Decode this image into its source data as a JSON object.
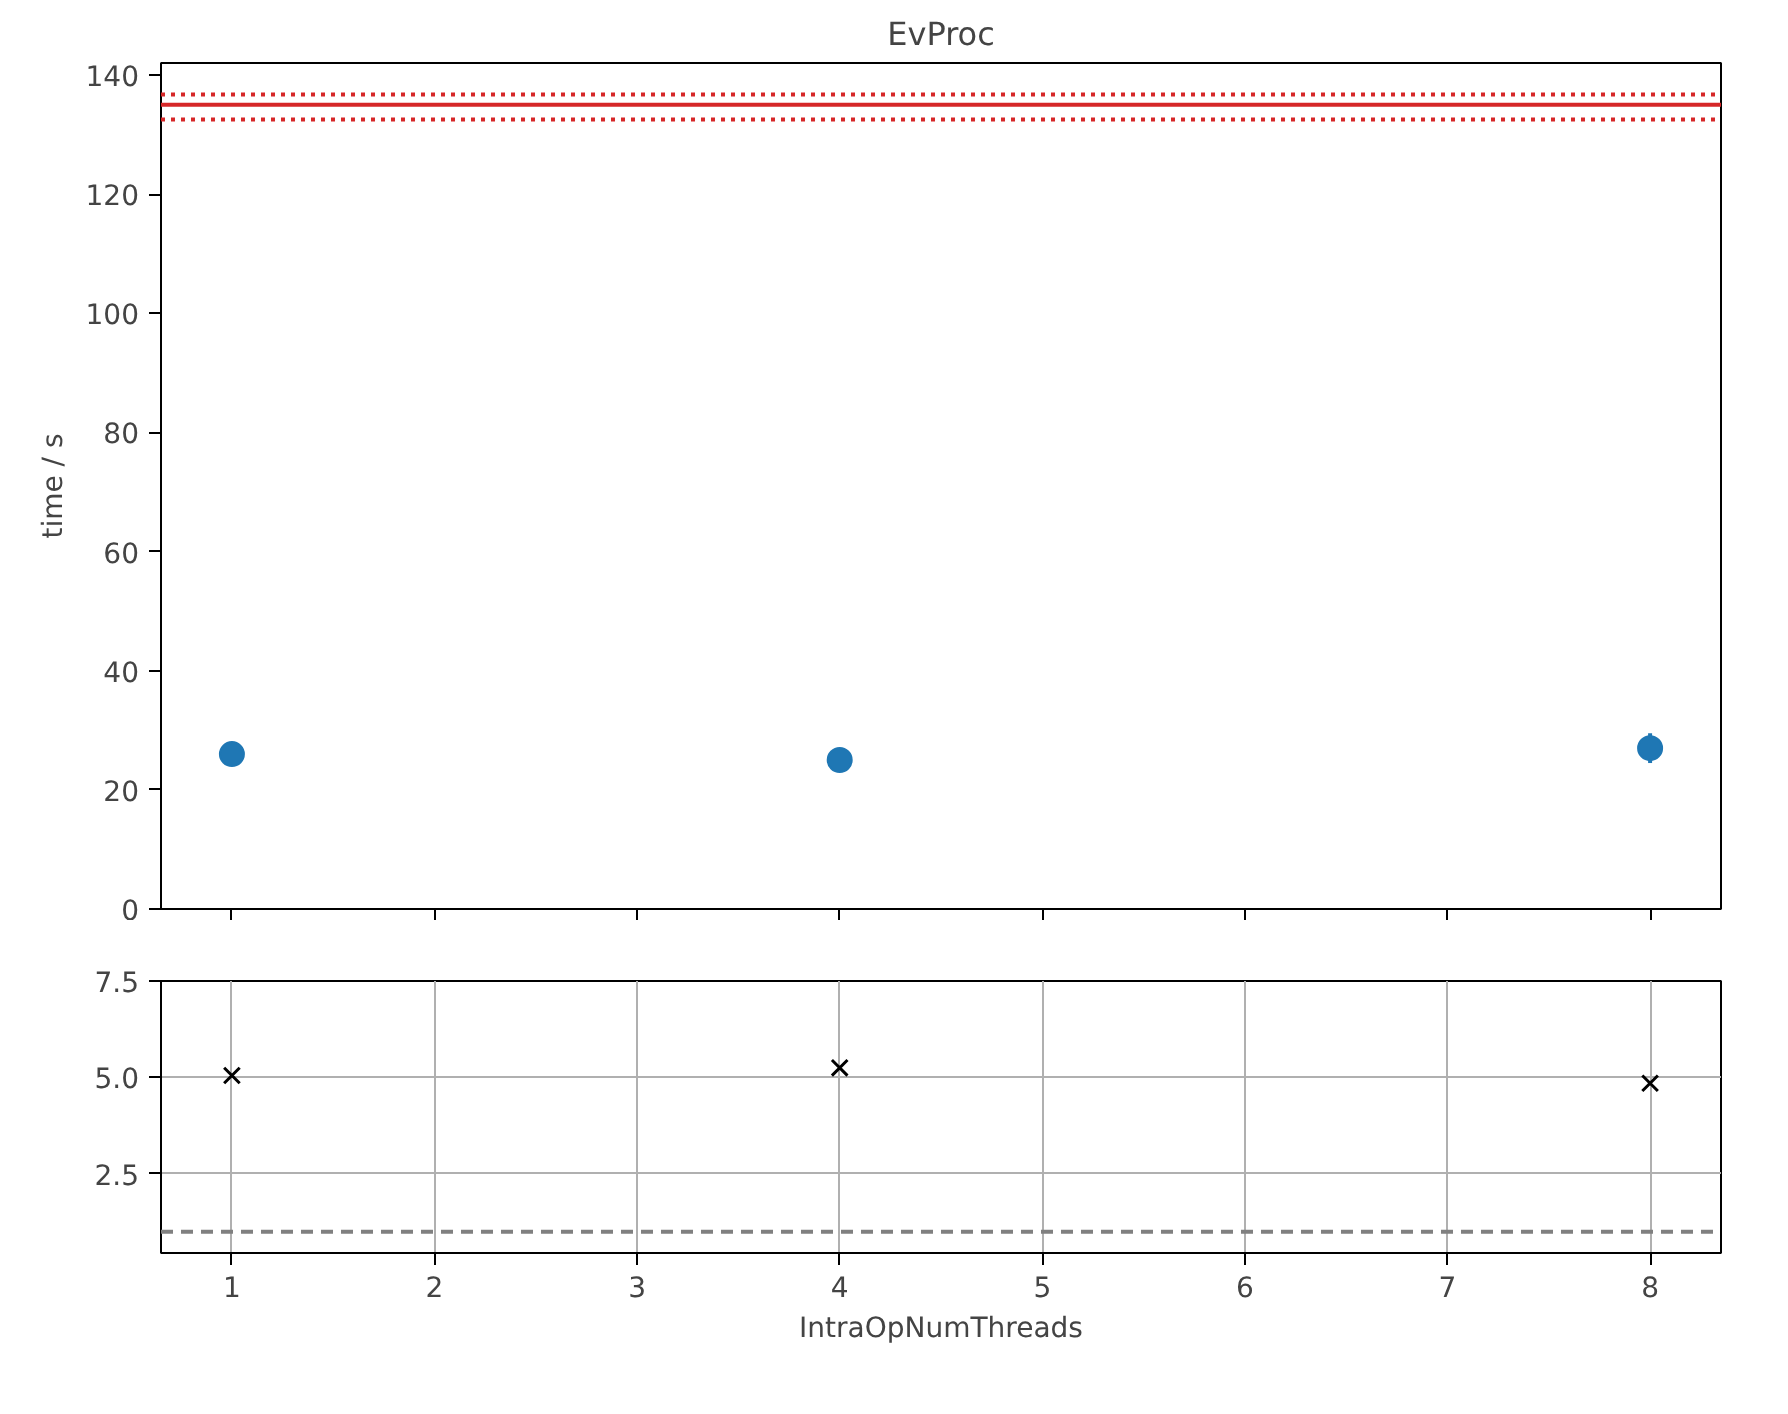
{
  "chart_data": [
    {
      "type": "scatter",
      "title": "EvProc",
      "ylabel": "time / s",
      "x": [
        1,
        4,
        8
      ],
      "xlim": [
        0.65,
        8.35
      ],
      "xticks": [
        1,
        2,
        3,
        4,
        5,
        6,
        7,
        8
      ],
      "ylim": [
        0,
        142
      ],
      "yticks": [
        0,
        20,
        40,
        60,
        80,
        100,
        120,
        140
      ],
      "tick_labels": "y",
      "grid": false,
      "marker": "circle",
      "series": [
        {
          "color": "#1f77b4",
          "values": [
            26,
            25,
            27
          ],
          "errors": [
            null,
            null,
            2.5
          ]
        }
      ],
      "ref_lines": [
        {
          "axis": "y",
          "value": 135,
          "color": "#d62728",
          "line_style": "solid"
        },
        {
          "axis": "y",
          "value": 136.7,
          "color": "#d62728",
          "line_style": "dotted"
        },
        {
          "axis": "y",
          "value": 132.5,
          "color": "#d62728",
          "line_style": "dotted"
        }
      ]
    },
    {
      "type": "scatter",
      "xlabel": "IntraOpNumThreads",
      "x": [
        1,
        4,
        8
      ],
      "xlim": [
        0.65,
        8.35
      ],
      "xticks": [
        1,
        2,
        3,
        4,
        5,
        6,
        7,
        8
      ],
      "ylim": [
        0.45,
        7.5
      ],
      "yticks": [
        {
          "value": 2.5,
          "label": "2.5"
        },
        {
          "value": 5,
          "label": "5.0"
        },
        {
          "value": 7.5,
          "label": "7.5"
        }
      ],
      "grid": true,
      "marker": "cross",
      "series": [
        {
          "color": "#000000",
          "values": [
            5.05,
            5.25,
            4.85
          ]
        }
      ],
      "ref_lines": [
        {
          "axis": "y",
          "value": 1,
          "color": "#808080",
          "line_style": "dashed"
        }
      ]
    }
  ]
}
